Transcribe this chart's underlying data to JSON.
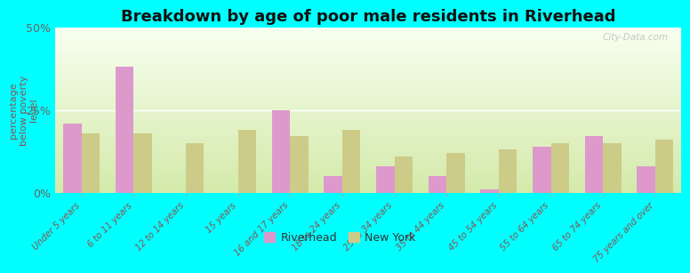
{
  "title": "Breakdown by age of poor male residents in Riverhead",
  "ylabel": "percentage\nbelow poverty\nlevel",
  "categories": [
    "Under 5 years",
    "6 to 11 years",
    "12 to 14 years",
    "15 years",
    "16 and 17 years",
    "18 to 24 years",
    "25 to 34 years",
    "35 to 44 years",
    "45 to 54 years",
    "55 to 64 years",
    "65 to 74 years",
    "75 years and over"
  ],
  "riverhead_values": [
    21,
    38,
    0,
    0,
    25,
    5,
    8,
    5,
    1,
    14,
    17,
    8
  ],
  "newyork_values": [
    18,
    18,
    15,
    19,
    17,
    19,
    11,
    12,
    13,
    15,
    15,
    16
  ],
  "riverhead_color": "#dd99cc",
  "newyork_color": "#cccc88",
  "ylim": [
    0,
    50
  ],
  "yticks": [
    0,
    25,
    50
  ],
  "ytick_labels": [
    "0%",
    "25%",
    "50%"
  ],
  "grad_top_color": "#f8fff0",
  "grad_bottom_color": "#d4eaaa",
  "figure_bg": "#00ffff",
  "bar_width": 0.35,
  "title_fontsize": 13,
  "watermark": "City-Data.com",
  "legend_label_riverhead": "Riverhead",
  "legend_label_newyork": "New York"
}
